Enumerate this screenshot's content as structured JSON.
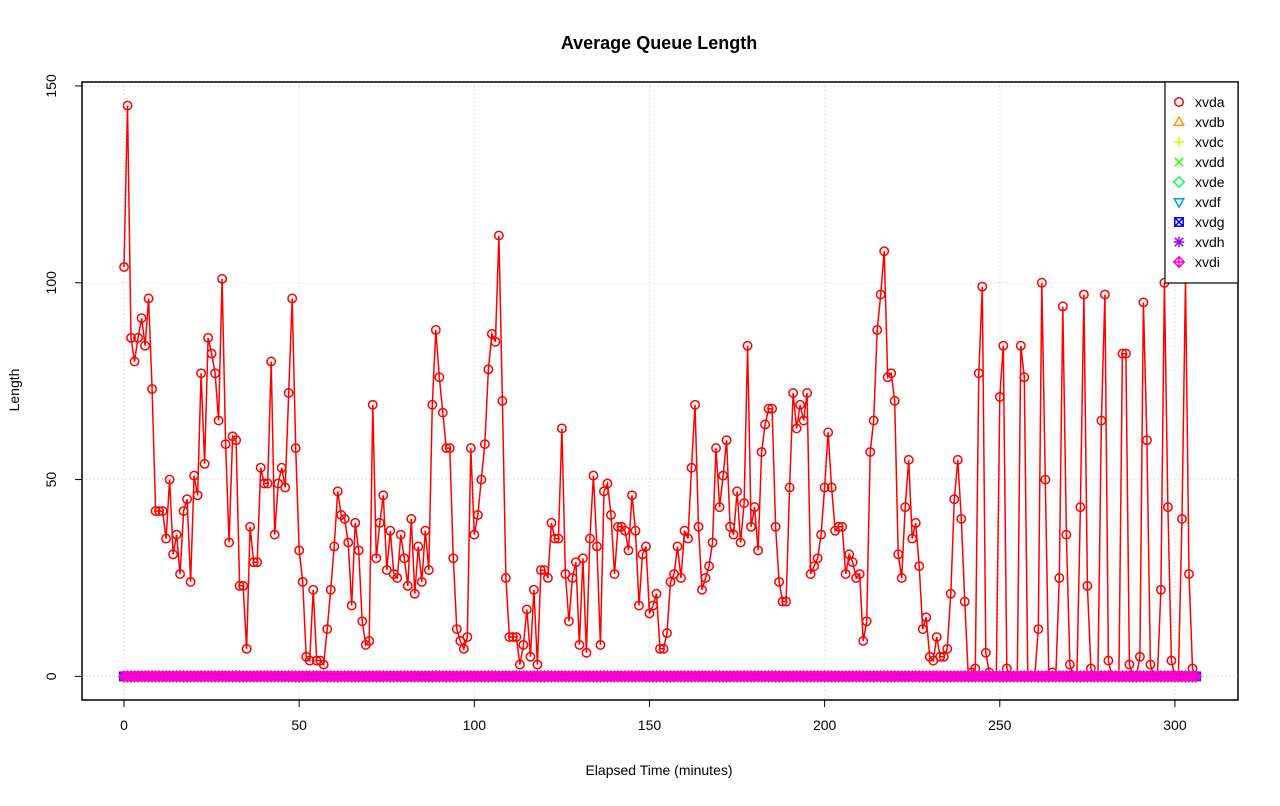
{
  "chart_data": {
    "type": "line",
    "title": "Average Queue Length",
    "xlabel": "Elapsed Time (minutes)",
    "ylabel": "Length",
    "xlim": [
      -12,
      318
    ],
    "ylim": [
      -6,
      151
    ],
    "xticks": [
      0,
      50,
      100,
      150,
      200,
      250,
      300
    ],
    "yticks": [
      0,
      50,
      100,
      150
    ],
    "grid": true,
    "legend_position": "top-right",
    "colors": {
      "xvda": "#ff0000",
      "xvdb": "#ff9900",
      "xvdc": "#ccff00",
      "xvdd": "#33ff00",
      "xvde": "#00ff66",
      "xvdf": "#0099ff",
      "xvdg": "#0000ff",
      "xvdh": "#9900ff",
      "xvdi": "#ff00cc"
    },
    "x": [
      0,
      1,
      2,
      3,
      4,
      5,
      6,
      7,
      8,
      9,
      10,
      11,
      12,
      13,
      14,
      15,
      16,
      17,
      18,
      19,
      20,
      21,
      22,
      23,
      24,
      25,
      26,
      27,
      28,
      29,
      30,
      31,
      32,
      33,
      34,
      35,
      36,
      37,
      38,
      39,
      40,
      41,
      42,
      43,
      44,
      45,
      46,
      47,
      48,
      49,
      50,
      51,
      52,
      53,
      54,
      55,
      56,
      57,
      58,
      59,
      60,
      61,
      62,
      63,
      64,
      65,
      66,
      67,
      68,
      69,
      70,
      71,
      72,
      73,
      74,
      75,
      76,
      77,
      78,
      79,
      80,
      81,
      82,
      83,
      84,
      85,
      86,
      87,
      88,
      89,
      90,
      91,
      92,
      93,
      94,
      95,
      96,
      97,
      98,
      99,
      100,
      101,
      102,
      103,
      104,
      105,
      106,
      107,
      108,
      109,
      110,
      111,
      112,
      113,
      114,
      115,
      116,
      117,
      118,
      119,
      120,
      121,
      122,
      123,
      124,
      125,
      126,
      127,
      128,
      129,
      130,
      131,
      132,
      133,
      134,
      135,
      136,
      137,
      138,
      139,
      140,
      141,
      142,
      143,
      144,
      145,
      146,
      147,
      148,
      149,
      150,
      151,
      152,
      153,
      154,
      155,
      156,
      157,
      158,
      159,
      160,
      161,
      162,
      163,
      164,
      165,
      166,
      167,
      168,
      169,
      170,
      171,
      172,
      173,
      174,
      175,
      176,
      177,
      178,
      179,
      180,
      181,
      182,
      183,
      184,
      185,
      186,
      187,
      188,
      189,
      190,
      191,
      192,
      193,
      194,
      195,
      196,
      197,
      198,
      199,
      200,
      201,
      202,
      203,
      204,
      205,
      206,
      207,
      208,
      209,
      210,
      211,
      212,
      213,
      214,
      215,
      216,
      217,
      218,
      219,
      220,
      221,
      222,
      223,
      224,
      225,
      226,
      227,
      228,
      229,
      230,
      231,
      232,
      233,
      234,
      235,
      236,
      237,
      238,
      239,
      240,
      241,
      242,
      243,
      244,
      245,
      246,
      247,
      248,
      249,
      250,
      251,
      252,
      253,
      254,
      255,
      256,
      257,
      258,
      259,
      260,
      261,
      262,
      263,
      264,
      265,
      266,
      267,
      268,
      269,
      270,
      271,
      272,
      273,
      274,
      275,
      276,
      277,
      278,
      279,
      280,
      281,
      282,
      283,
      284,
      285,
      286,
      287,
      288,
      289,
      290,
      291,
      292,
      293,
      294,
      295,
      296,
      297,
      298,
      299,
      300,
      301,
      302,
      303,
      304,
      305,
      306
    ],
    "series": [
      {
        "name": "xvda",
        "marker": "circle",
        "line": true,
        "values": [
          104,
          145,
          86,
          80,
          86,
          91,
          84,
          96,
          73,
          42,
          42,
          42,
          35,
          50,
          31,
          36,
          26,
          42,
          45,
          24,
          51,
          46,
          77,
          54,
          86,
          82,
          77,
          65,
          101,
          59,
          34,
          61,
          60,
          23,
          23,
          7,
          38,
          29,
          29,
          53,
          49,
          49,
          80,
          36,
          49,
          53,
          48,
          72,
          96,
          58,
          32,
          24,
          5,
          4,
          22,
          4,
          4,
          3,
          12,
          22,
          33,
          47,
          41,
          40,
          34,
          18,
          39,
          32,
          14,
          8,
          9,
          69,
          30,
          39,
          46,
          27,
          37,
          26,
          25,
          36,
          30,
          23,
          40,
          21,
          33,
          24,
          37,
          27,
          69,
          88,
          76,
          67,
          58,
          58,
          30,
          12,
          9,
          7,
          10,
          58,
          36,
          41,
          50,
          59,
          78,
          87,
          85,
          112,
          70,
          25,
          10,
          10,
          10,
          3,
          8,
          17,
          5,
          22,
          3,
          27,
          27,
          25,
          39,
          35,
          35,
          63,
          26,
          14,
          25,
          29,
          8,
          30,
          6,
          35,
          51,
          33,
          8,
          47,
          49,
          41,
          26,
          38,
          38,
          37,
          32,
          46,
          37,
          18,
          31,
          33,
          16,
          18,
          21,
          7,
          7,
          11,
          24,
          26,
          33,
          25,
          37,
          35,
          53,
          69,
          38,
          22,
          25,
          28,
          34,
          58,
          43,
          51,
          60,
          38,
          36,
          47,
          34,
          44,
          84,
          38,
          43,
          32,
          57,
          64,
          68,
          68,
          38,
          24,
          19,
          19,
          48,
          72,
          63,
          69,
          65,
          72,
          26,
          28,
          30,
          36,
          48,
          62,
          48,
          37,
          38,
          38,
          26,
          31,
          29,
          25,
          26,
          9,
          14,
          57,
          65,
          88,
          97,
          108,
          76,
          77,
          70,
          31,
          25,
          43,
          55,
          35,
          39,
          28,
          12,
          15,
          5,
          4,
          10,
          5,
          5,
          7,
          21,
          45,
          55,
          40,
          19,
          0,
          1,
          2,
          77,
          99,
          6,
          1,
          0,
          0,
          71,
          84,
          2,
          0,
          0,
          0,
          84,
          76,
          0,
          0,
          0,
          12,
          100,
          50,
          0,
          1,
          0,
          25,
          94,
          36,
          3,
          0,
          0,
          43,
          97,
          23,
          2,
          0,
          0,
          65,
          97,
          4,
          0,
          0,
          0,
          82,
          82,
          3,
          0,
          0,
          5,
          95,
          60,
          3,
          0,
          0,
          22,
          100,
          43,
          4,
          0,
          0,
          40,
          101,
          26,
          2,
          0
        ]
      },
      {
        "name": "xvdb",
        "marker": "triangle-up",
        "line": false,
        "constant": 0
      },
      {
        "name": "xvdc",
        "marker": "plus",
        "line": false,
        "constant": 0
      },
      {
        "name": "xvdd",
        "marker": "cross",
        "line": false,
        "constant": 0
      },
      {
        "name": "xvde",
        "marker": "diamond",
        "line": false,
        "constant": 0
      },
      {
        "name": "xvdf",
        "marker": "triangle-down",
        "line": false,
        "constant": 0
      },
      {
        "name": "xvdg",
        "marker": "square-x",
        "line": false,
        "constant": 0
      },
      {
        "name": "xvdh",
        "marker": "asterisk",
        "line": false,
        "constant": 0
      },
      {
        "name": "xvdi",
        "marker": "diamond-plus",
        "line": false,
        "constant": 0
      }
    ]
  }
}
